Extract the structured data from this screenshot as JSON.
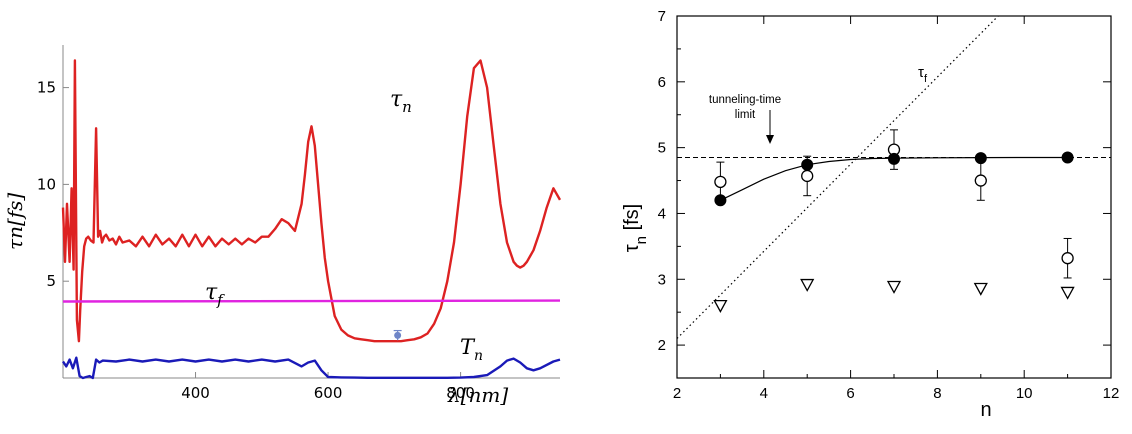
{
  "chart_data": [
    {
      "type": "line",
      "panel": "left",
      "xlabel": "λ[nm]",
      "ylabel": "τn[fs]",
      "xlim": [
        200,
        950
      ],
      "ylim": [
        0,
        17.2
      ],
      "xticks": [
        400,
        600,
        800
      ],
      "yticks": [
        5,
        10,
        15
      ],
      "series": [
        {
          "name": "τn",
          "label_main": "τ",
          "label_sub": "n",
          "color": "#dd2222",
          "x": [
            200,
            203,
            206,
            210,
            213,
            216,
            218,
            221,
            224,
            226,
            229,
            232,
            235,
            238,
            242,
            246,
            250,
            253,
            256,
            259,
            262,
            265,
            270,
            275,
            280,
            285,
            290,
            300,
            310,
            320,
            330,
            340,
            350,
            360,
            370,
            380,
            390,
            400,
            410,
            420,
            430,
            440,
            450,
            460,
            470,
            480,
            490,
            500,
            510,
            520,
            530,
            540,
            550,
            560,
            565,
            570,
            575,
            580,
            585,
            590,
            595,
            600,
            610,
            620,
            630,
            640,
            650,
            660,
            670,
            680,
            690,
            700,
            710,
            720,
            730,
            740,
            750,
            760,
            770,
            780,
            790,
            800,
            810,
            820,
            830,
            840,
            850,
            860,
            870,
            880,
            885,
            890,
            895,
            900,
            905,
            910,
            920,
            930,
            940,
            950
          ],
          "values": [
            8.8,
            6.0,
            9.0,
            6.0,
            9.8,
            5.6,
            16.4,
            3.0,
            1.9,
            3.5,
            5.5,
            6.8,
            7.2,
            7.3,
            7.1,
            7.0,
            12.9,
            7.3,
            7.6,
            7.0,
            7.3,
            7.4,
            7.1,
            7.2,
            6.9,
            7.3,
            7.0,
            7.1,
            6.8,
            7.3,
            6.8,
            7.4,
            6.9,
            7.2,
            6.8,
            7.4,
            6.8,
            7.4,
            6.8,
            7.3,
            6.8,
            7.2,
            6.9,
            7.2,
            6.9,
            7.2,
            7.0,
            7.3,
            7.3,
            7.7,
            8.2,
            8.0,
            7.6,
            9.0,
            10.5,
            12.2,
            13.0,
            12.0,
            10.0,
            8.0,
            6.2,
            5.0,
            3.2,
            2.5,
            2.2,
            2.05,
            2.0,
            1.95,
            1.9,
            1.9,
            1.9,
            1.9,
            1.9,
            1.95,
            2.0,
            2.1,
            2.3,
            2.8,
            3.6,
            5.0,
            7.0,
            10.0,
            13.5,
            16.0,
            16.4,
            15.0,
            12.0,
            9.0,
            7.0,
            6.0,
            5.8,
            5.7,
            5.8,
            6.0,
            6.3,
            6.6,
            7.6,
            8.8,
            9.8,
            9.2
          ]
        },
        {
          "name": "τf",
          "label_main": "τ",
          "label_sub": "f",
          "color": "#e024e0",
          "x": [
            200,
            950
          ],
          "values": [
            3.95,
            4.0
          ]
        },
        {
          "name": "Tn",
          "label_main": "T",
          "label_sub": "n",
          "color": "#1a1ab8",
          "x": [
            200,
            205,
            210,
            215,
            220,
            225,
            230,
            235,
            240,
            245,
            250,
            255,
            260,
            280,
            300,
            320,
            340,
            360,
            380,
            400,
            420,
            440,
            460,
            480,
            500,
            520,
            540,
            560,
            570,
            580,
            590,
            600,
            620,
            640,
            660,
            680,
            700,
            720,
            740,
            760,
            780,
            800,
            820,
            840,
            860,
            870,
            880,
            890,
            900,
            910,
            920,
            940,
            950
          ],
          "values": [
            0.85,
            0.6,
            0.95,
            0.5,
            1.05,
            0.1,
            0.0,
            0.05,
            0.1,
            0.0,
            0.95,
            0.8,
            0.9,
            0.85,
            0.95,
            0.85,
            0.95,
            0.85,
            0.95,
            0.85,
            0.95,
            0.85,
            0.95,
            0.85,
            0.95,
            0.85,
            0.95,
            0.6,
            0.8,
            0.9,
            0.4,
            0.05,
            0.03,
            0.02,
            0.01,
            0.01,
            0.01,
            0.01,
            0.01,
            0.01,
            0.01,
            0.02,
            0.05,
            0.15,
            0.6,
            0.9,
            1.0,
            0.8,
            0.5,
            0.4,
            0.5,
            0.85,
            0.95
          ]
        }
      ],
      "marker": {
        "name": "data-point",
        "x": 705,
        "y": 2.2,
        "error": 0.25,
        "color": "#6f86c8"
      }
    },
    {
      "type": "scatter",
      "panel": "right",
      "xlabel": "n",
      "ylabel_main": "τ",
      "ylabel_sub": "n",
      "ylabel_rest": " [fs]",
      "xlim": [
        2,
        12
      ],
      "ylim": [
        1.5,
        7
      ],
      "xticks": [
        2,
        4,
        6,
        8,
        10,
        12
      ],
      "yticks": [
        2,
        3,
        4,
        5,
        6,
        7
      ],
      "series": [
        {
          "name": "filled-circles",
          "x": [
            3,
            5,
            7,
            9,
            11
          ],
          "values": [
            4.2,
            4.74,
            4.83,
            4.84,
            4.85
          ]
        },
        {
          "name": "open-circles",
          "x": [
            3,
            5,
            7,
            9,
            11
          ],
          "values": [
            4.48,
            4.57,
            4.97,
            4.5,
            3.32
          ],
          "errors": [
            0.3,
            0.3,
            0.3,
            0.3,
            0.3
          ]
        },
        {
          "name": "open-triangles",
          "x": [
            3,
            5,
            7,
            9,
            11
          ],
          "values": [
            2.6,
            2.92,
            2.89,
            2.86,
            2.8
          ]
        }
      ],
      "fit_curve": {
        "name": "fit",
        "x": [
          3,
          3.5,
          4,
          4.5,
          5,
          5.5,
          6,
          6.5,
          7,
          8,
          9,
          10,
          11
        ],
        "values": [
          4.2,
          4.36,
          4.52,
          4.65,
          4.74,
          4.79,
          4.82,
          4.835,
          4.84,
          4.845,
          4.848,
          4.85,
          4.85
        ]
      },
      "limit_line": {
        "name": "tunneling-time-limit",
        "y": 4.85
      },
      "tau_f_line": {
        "name": "τf",
        "x": [
          2,
          9.4
        ],
        "values": [
          2.1,
          7.0
        ],
        "label_main": "τ",
        "label_sub": "f"
      },
      "annotation": {
        "line1": "tunneling-time",
        "line2": "limit"
      }
    }
  ]
}
